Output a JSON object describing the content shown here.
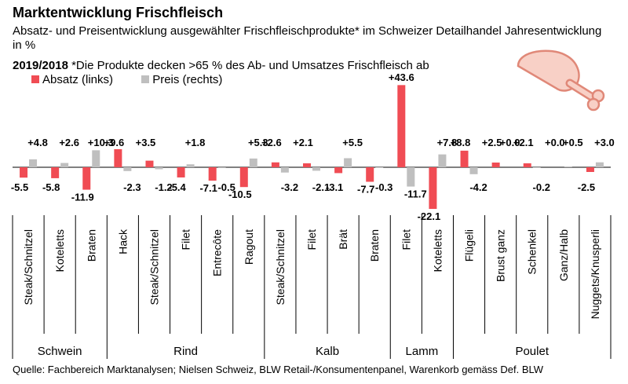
{
  "header": {
    "title": "Marktentwicklung Frischfleisch",
    "subtitle": "Absatz- und Preisentwicklung ausgewählter Frischfleischprodukte* im Schweizer Detailhandel Jahresentwicklung in %",
    "period": "2019/2018",
    "note": "*Die Produkte decken >65 % des Ab- und Umsatzes Frischfleisch ab"
  },
  "legend": {
    "absatz": "Absatz (links)",
    "preis": "Preis (rechts)"
  },
  "source": "Quelle: Fachbereich Marktanalysen; Nielsen Schweiz, BLW Retail-/Konsumentenpanel, Warenkorb gemäss Def. BLW",
  "colors": {
    "absatz": "#f04c54",
    "preis": "#bfbfbf"
  },
  "chart_data": {
    "type": "bar",
    "categories": [
      "Steak/Schnitzel",
      "Koteletts",
      "Braten",
      "Hack",
      "Steak/Schnitzel",
      "Filet",
      "Entrecôte",
      "Ragout",
      "Steak/Schnitzel",
      "Filet",
      "Brät",
      "Braten",
      "Filet",
      "Koteletts",
      "Flügeli",
      "Brust ganz",
      "Schenkel",
      "Ganz/Halb",
      "Nuggets/Knusperli"
    ],
    "groups": [
      {
        "name": "Schwein",
        "count": 3
      },
      {
        "name": "Rind",
        "count": 5
      },
      {
        "name": "Kalb",
        "count": 4
      },
      {
        "name": "Lamm",
        "count": 2
      },
      {
        "name": "Poulet",
        "count": 5
      }
    ],
    "series": [
      {
        "name": "Absatz (links)",
        "values": [
          -5.5,
          -5.8,
          -11.9,
          9.6,
          3.5,
          -5.4,
          -7.1,
          -10.5,
          2.6,
          2.1,
          -3.1,
          -7.7,
          43.6,
          -22.1,
          8.8,
          2.5,
          2.1,
          0.0,
          -2.5
        ]
      },
      {
        "name": "Preis (rechts)",
        "values": [
          4.8,
          2.6,
          10.3,
          -2.3,
          -1.2,
          1.8,
          -0.5,
          5.3,
          -3.2,
          -2.1,
          5.5,
          -0.3,
          -11.7,
          7.8,
          -4.2,
          0.0,
          -0.2,
          0.5,
          3.0
        ]
      }
    ],
    "labels": {
      "absatz": [
        "-5.5",
        "-5.8",
        "-11.9",
        "+9.6",
        "+3.5",
        "-5.4",
        "-7.1",
        "-10.5",
        "+2.6",
        "+2.1",
        "-3.1",
        "-7.7",
        "+43.6",
        "-22.1",
        "+8.8",
        "+2.5",
        "+2.1",
        "+0.0",
        "-2.5"
      ],
      "preis": [
        "+4.8",
        "+2.6",
        "+10.3",
        "-2.3",
        "-1.2",
        "+1.8",
        "-0.5",
        "+5.3",
        "-3.2",
        "-2.1",
        "+5.5",
        "-0.3",
        "-11.7",
        "+7.8",
        "-4.2",
        "+0.0",
        "-0.2",
        "+0.5",
        "+3.0"
      ]
    },
    "grid": false,
    "legend_position": "top-left"
  }
}
